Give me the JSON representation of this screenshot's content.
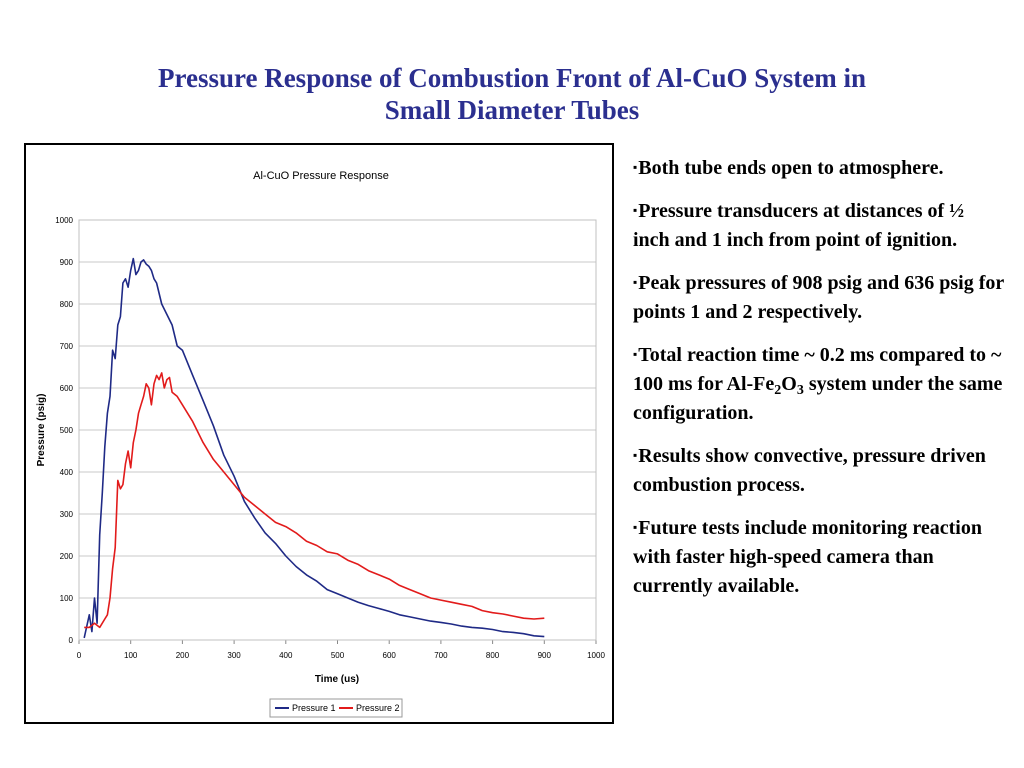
{
  "slide": {
    "title_line1": "Pressure Response of Combustion Front of Al-CuO System in",
    "title_line2": "Small Diameter Tubes",
    "title_color": "#2b2f8f"
  },
  "bullets": [
    {
      "marker": "▪",
      "text": "Both tube ends open to atmosphere."
    },
    {
      "marker": "▪",
      "text": "Pressure transducers at distances of ½ inch and 1 inch from point of ignition."
    },
    {
      "marker": "▪",
      "text": "Peak pressures of 908 psig and 636 psig for points 1 and 2 respectively."
    },
    {
      "marker": "▪",
      "pre": "Total reaction time ~ 0.2 ms compared to ~ 100 ms for Al-Fe",
      "sub1": "2",
      "mid": "O",
      "sub2": "3",
      "post": " system under the same configuration."
    },
    {
      "marker": "▪",
      "text": "Results show convective, pressure driven combustion process."
    },
    {
      "marker": "▪",
      "text": "Future tests include monitoring reaction with faster high-speed camera than currently available."
    }
  ],
  "chart_data": {
    "type": "line",
    "title": "Al-CuO Pressure Response",
    "xlabel": "Time (us)",
    "ylabel": "Pressure (psig)",
    "xlim": [
      0,
      1000
    ],
    "ylim": [
      0,
      1000
    ],
    "xticks": [
      "0",
      "100",
      "200",
      "300",
      "400",
      "500",
      "600",
      "700",
      "800",
      "900",
      "1000"
    ],
    "yticks": [
      "0",
      "100",
      "200",
      "300",
      "400",
      "500",
      "600",
      "700",
      "800",
      "900",
      "1000"
    ],
    "grid": "horizontal",
    "legend_position": "bottom",
    "series": [
      {
        "name": "Pressure 1",
        "color": "#1f2a86",
        "x": [
          10,
          20,
          25,
          30,
          35,
          40,
          45,
          50,
          55,
          60,
          65,
          70,
          75,
          80,
          85,
          90,
          95,
          100,
          105,
          110,
          115,
          120,
          125,
          130,
          135,
          140,
          145,
          150,
          160,
          170,
          180,
          190,
          200,
          220,
          240,
          260,
          280,
          300,
          320,
          340,
          360,
          380,
          400,
          420,
          440,
          460,
          480,
          500,
          520,
          540,
          560,
          580,
          600,
          620,
          640,
          660,
          680,
          700,
          720,
          740,
          760,
          780,
          800,
          820,
          840,
          860,
          880,
          900
        ],
        "y": [
          5,
          60,
          20,
          100,
          40,
          250,
          350,
          460,
          540,
          580,
          690,
          670,
          750,
          770,
          850,
          860,
          840,
          880,
          908,
          870,
          880,
          900,
          905,
          895,
          890,
          880,
          860,
          850,
          800,
          775,
          750,
          700,
          690,
          630,
          570,
          510,
          440,
          390,
          330,
          290,
          255,
          230,
          200,
          175,
          155,
          140,
          120,
          110,
          100,
          90,
          82,
          75,
          68,
          60,
          55,
          50,
          45,
          42,
          38,
          33,
          30,
          28,
          25,
          20,
          18,
          15,
          10,
          8
        ]
      },
      {
        "name": "Pressure 2",
        "color": "#e21b1b",
        "x": [
          10,
          20,
          30,
          40,
          50,
          55,
          60,
          65,
          70,
          75,
          80,
          85,
          90,
          95,
          100,
          105,
          110,
          115,
          120,
          125,
          130,
          135,
          140,
          145,
          150,
          155,
          160,
          165,
          170,
          175,
          180,
          190,
          200,
          220,
          240,
          260,
          280,
          300,
          320,
          340,
          360,
          380,
          400,
          420,
          440,
          460,
          480,
          500,
          520,
          540,
          560,
          580,
          600,
          620,
          640,
          660,
          680,
          700,
          720,
          740,
          760,
          780,
          800,
          820,
          840,
          860,
          880,
          900
        ],
        "y": [
          30,
          30,
          40,
          30,
          50,
          60,
          100,
          170,
          220,
          380,
          360,
          370,
          420,
          450,
          410,
          470,
          500,
          540,
          560,
          580,
          610,
          600,
          560,
          610,
          630,
          620,
          636,
          600,
          620,
          625,
          590,
          580,
          560,
          520,
          470,
          430,
          400,
          370,
          340,
          320,
          300,
          280,
          270,
          255,
          235,
          225,
          210,
          205,
          190,
          180,
          165,
          155,
          145,
          130,
          120,
          110,
          100,
          95,
          90,
          85,
          80,
          70,
          65,
          62,
          57,
          52,
          50,
          52
        ]
      }
    ]
  }
}
